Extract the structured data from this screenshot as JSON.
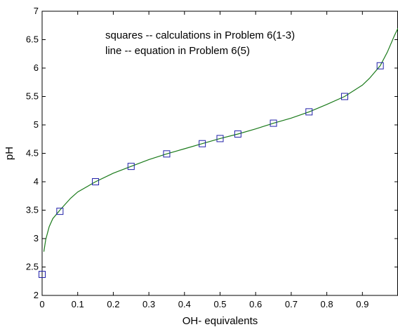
{
  "chart_data": {
    "type": "scatter",
    "xlabel": "OH- equivalents",
    "ylabel": "pH",
    "xlim": [
      0,
      1
    ],
    "ylim": [
      2,
      7
    ],
    "x_ticks": [
      0,
      0.1,
      0.2,
      0.3,
      0.4,
      0.5,
      0.6,
      0.7,
      0.8,
      0.9
    ],
    "x_tick_labels": [
      "0",
      "0.1",
      "0.2",
      "0.3",
      "0.4",
      "0.5",
      "0.6",
      "0.7",
      "0.8",
      "0.9"
    ],
    "y_ticks": [
      2,
      2.5,
      3,
      3.5,
      4,
      4.5,
      5,
      5.5,
      6,
      6.5,
      7
    ],
    "y_tick_labels": [
      "2",
      "2.5",
      "3",
      "3.5",
      "4",
      "4.5",
      "5",
      "5.5",
      "6",
      "6.5",
      "7"
    ],
    "grid": false,
    "annotations": [
      "squares -- calculations in Problem 6(1-3)",
      "line -- equation in Problem 6(5)"
    ],
    "series": [
      {
        "kind": "markers",
        "marker": "square",
        "color": "#1f1fa8",
        "x": [
          0,
          0.05,
          0.15,
          0.25,
          0.35,
          0.45,
          0.5,
          0.55,
          0.65,
          0.75,
          0.85,
          0.95
        ],
        "y": [
          2.37,
          3.48,
          4.0,
          4.27,
          4.49,
          4.67,
          4.76,
          4.84,
          5.03,
          5.23,
          5.5,
          6.04
        ]
      },
      {
        "kind": "line",
        "color": "#1a7a1a",
        "x": [
          0.005,
          0.01,
          0.02,
          0.03,
          0.05,
          0.08,
          0.1,
          0.15,
          0.2,
          0.25,
          0.3,
          0.35,
          0.4,
          0.45,
          0.5,
          0.55,
          0.6,
          0.65,
          0.7,
          0.75,
          0.8,
          0.85,
          0.9,
          0.92,
          0.95,
          0.97,
          0.99,
          1.0
        ],
        "y": [
          2.77,
          2.98,
          3.21,
          3.35,
          3.5,
          3.71,
          3.82,
          4.0,
          4.15,
          4.27,
          4.39,
          4.49,
          4.58,
          4.67,
          4.76,
          4.84,
          4.93,
          5.03,
          5.12,
          5.23,
          5.36,
          5.5,
          5.7,
          5.82,
          6.04,
          6.28,
          6.57,
          6.7
        ]
      }
    ]
  }
}
